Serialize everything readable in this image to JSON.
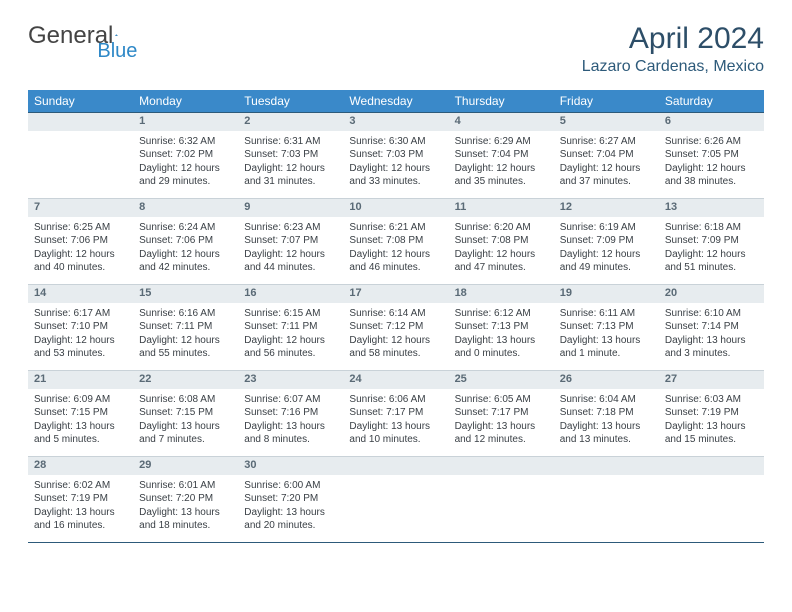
{
  "logo": {
    "text1": "General",
    "text2": "Blue"
  },
  "title": "April 2024",
  "location": "Lazaro Cardenas, Mexico",
  "colors": {
    "header_bg": "#3a89c9",
    "header_text": "#ffffff",
    "daynum_bg": "#e7ecef",
    "border_dark": "#2d5a7a",
    "border_light": "#c9d2d8",
    "title_color": "#2d4e68"
  },
  "weekdays": [
    "Sunday",
    "Monday",
    "Tuesday",
    "Wednesday",
    "Thursday",
    "Friday",
    "Saturday"
  ],
  "weeks": [
    [
      null,
      {
        "n": "1",
        "sr": "6:32 AM",
        "ss": "7:02 PM",
        "d": "12 hours and 29 minutes."
      },
      {
        "n": "2",
        "sr": "6:31 AM",
        "ss": "7:03 PM",
        "d": "12 hours and 31 minutes."
      },
      {
        "n": "3",
        "sr": "6:30 AM",
        "ss": "7:03 PM",
        "d": "12 hours and 33 minutes."
      },
      {
        "n": "4",
        "sr": "6:29 AM",
        "ss": "7:04 PM",
        "d": "12 hours and 35 minutes."
      },
      {
        "n": "5",
        "sr": "6:27 AM",
        "ss": "7:04 PM",
        "d": "12 hours and 37 minutes."
      },
      {
        "n": "6",
        "sr": "6:26 AM",
        "ss": "7:05 PM",
        "d": "12 hours and 38 minutes."
      }
    ],
    [
      {
        "n": "7",
        "sr": "6:25 AM",
        "ss": "7:06 PM",
        "d": "12 hours and 40 minutes."
      },
      {
        "n": "8",
        "sr": "6:24 AM",
        "ss": "7:06 PM",
        "d": "12 hours and 42 minutes."
      },
      {
        "n": "9",
        "sr": "6:23 AM",
        "ss": "7:07 PM",
        "d": "12 hours and 44 minutes."
      },
      {
        "n": "10",
        "sr": "6:21 AM",
        "ss": "7:08 PM",
        "d": "12 hours and 46 minutes."
      },
      {
        "n": "11",
        "sr": "6:20 AM",
        "ss": "7:08 PM",
        "d": "12 hours and 47 minutes."
      },
      {
        "n": "12",
        "sr": "6:19 AM",
        "ss": "7:09 PM",
        "d": "12 hours and 49 minutes."
      },
      {
        "n": "13",
        "sr": "6:18 AM",
        "ss": "7:09 PM",
        "d": "12 hours and 51 minutes."
      }
    ],
    [
      {
        "n": "14",
        "sr": "6:17 AM",
        "ss": "7:10 PM",
        "d": "12 hours and 53 minutes."
      },
      {
        "n": "15",
        "sr": "6:16 AM",
        "ss": "7:11 PM",
        "d": "12 hours and 55 minutes."
      },
      {
        "n": "16",
        "sr": "6:15 AM",
        "ss": "7:11 PM",
        "d": "12 hours and 56 minutes."
      },
      {
        "n": "17",
        "sr": "6:14 AM",
        "ss": "7:12 PM",
        "d": "12 hours and 58 minutes."
      },
      {
        "n": "18",
        "sr": "6:12 AM",
        "ss": "7:13 PM",
        "d": "13 hours and 0 minutes."
      },
      {
        "n": "19",
        "sr": "6:11 AM",
        "ss": "7:13 PM",
        "d": "13 hours and 1 minute."
      },
      {
        "n": "20",
        "sr": "6:10 AM",
        "ss": "7:14 PM",
        "d": "13 hours and 3 minutes."
      }
    ],
    [
      {
        "n": "21",
        "sr": "6:09 AM",
        "ss": "7:15 PM",
        "d": "13 hours and 5 minutes."
      },
      {
        "n": "22",
        "sr": "6:08 AM",
        "ss": "7:15 PM",
        "d": "13 hours and 7 minutes."
      },
      {
        "n": "23",
        "sr": "6:07 AM",
        "ss": "7:16 PM",
        "d": "13 hours and 8 minutes."
      },
      {
        "n": "24",
        "sr": "6:06 AM",
        "ss": "7:17 PM",
        "d": "13 hours and 10 minutes."
      },
      {
        "n": "25",
        "sr": "6:05 AM",
        "ss": "7:17 PM",
        "d": "13 hours and 12 minutes."
      },
      {
        "n": "26",
        "sr": "6:04 AM",
        "ss": "7:18 PM",
        "d": "13 hours and 13 minutes."
      },
      {
        "n": "27",
        "sr": "6:03 AM",
        "ss": "7:19 PM",
        "d": "13 hours and 15 minutes."
      }
    ],
    [
      {
        "n": "28",
        "sr": "6:02 AM",
        "ss": "7:19 PM",
        "d": "13 hours and 16 minutes."
      },
      {
        "n": "29",
        "sr": "6:01 AM",
        "ss": "7:20 PM",
        "d": "13 hours and 18 minutes."
      },
      {
        "n": "30",
        "sr": "6:00 AM",
        "ss": "7:20 PM",
        "d": "13 hours and 20 minutes."
      },
      null,
      null,
      null,
      null
    ]
  ],
  "labels": {
    "sunrise": "Sunrise:",
    "sunset": "Sunset:",
    "daylight": "Daylight:"
  }
}
